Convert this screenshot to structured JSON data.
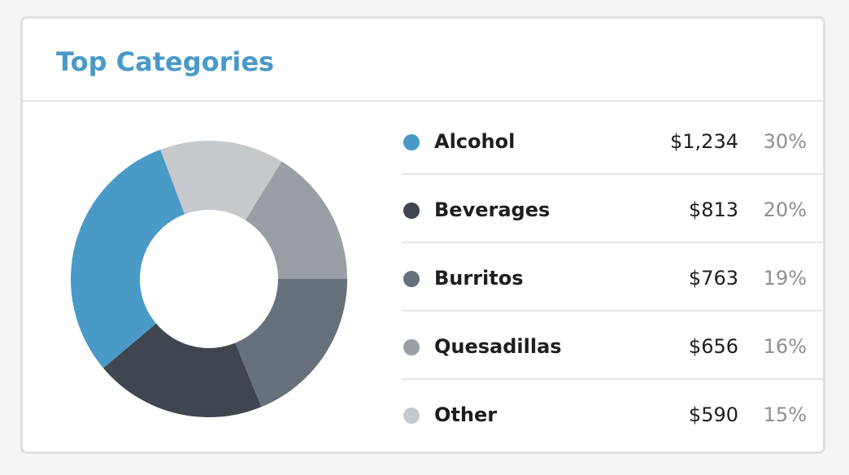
{
  "card": {
    "title": "Top Categories"
  },
  "chart_data": {
    "type": "pie",
    "title": "Top Categories",
    "categories": [
      "Alcohol",
      "Beverages",
      "Burritos",
      "Quesadillas",
      "Other"
    ],
    "values": [
      1234,
      813,
      763,
      656,
      590
    ],
    "value_labels": [
      "$1,234",
      "$813",
      "$763",
      "$656",
      "$590"
    ],
    "percent_labels": [
      "30%",
      "20%",
      "19%",
      "16%",
      "15%"
    ],
    "colors": [
      "#4a9ac8",
      "#3f4650",
      "#66717c",
      "#999fa4",
      "#c6c9cc"
    ],
    "slice_order_clockwise_from_right": [
      "Burritos",
      "Beverages",
      "Alcohol",
      "Other",
      "Quesadillas"
    ],
    "legend_position": "right"
  }
}
